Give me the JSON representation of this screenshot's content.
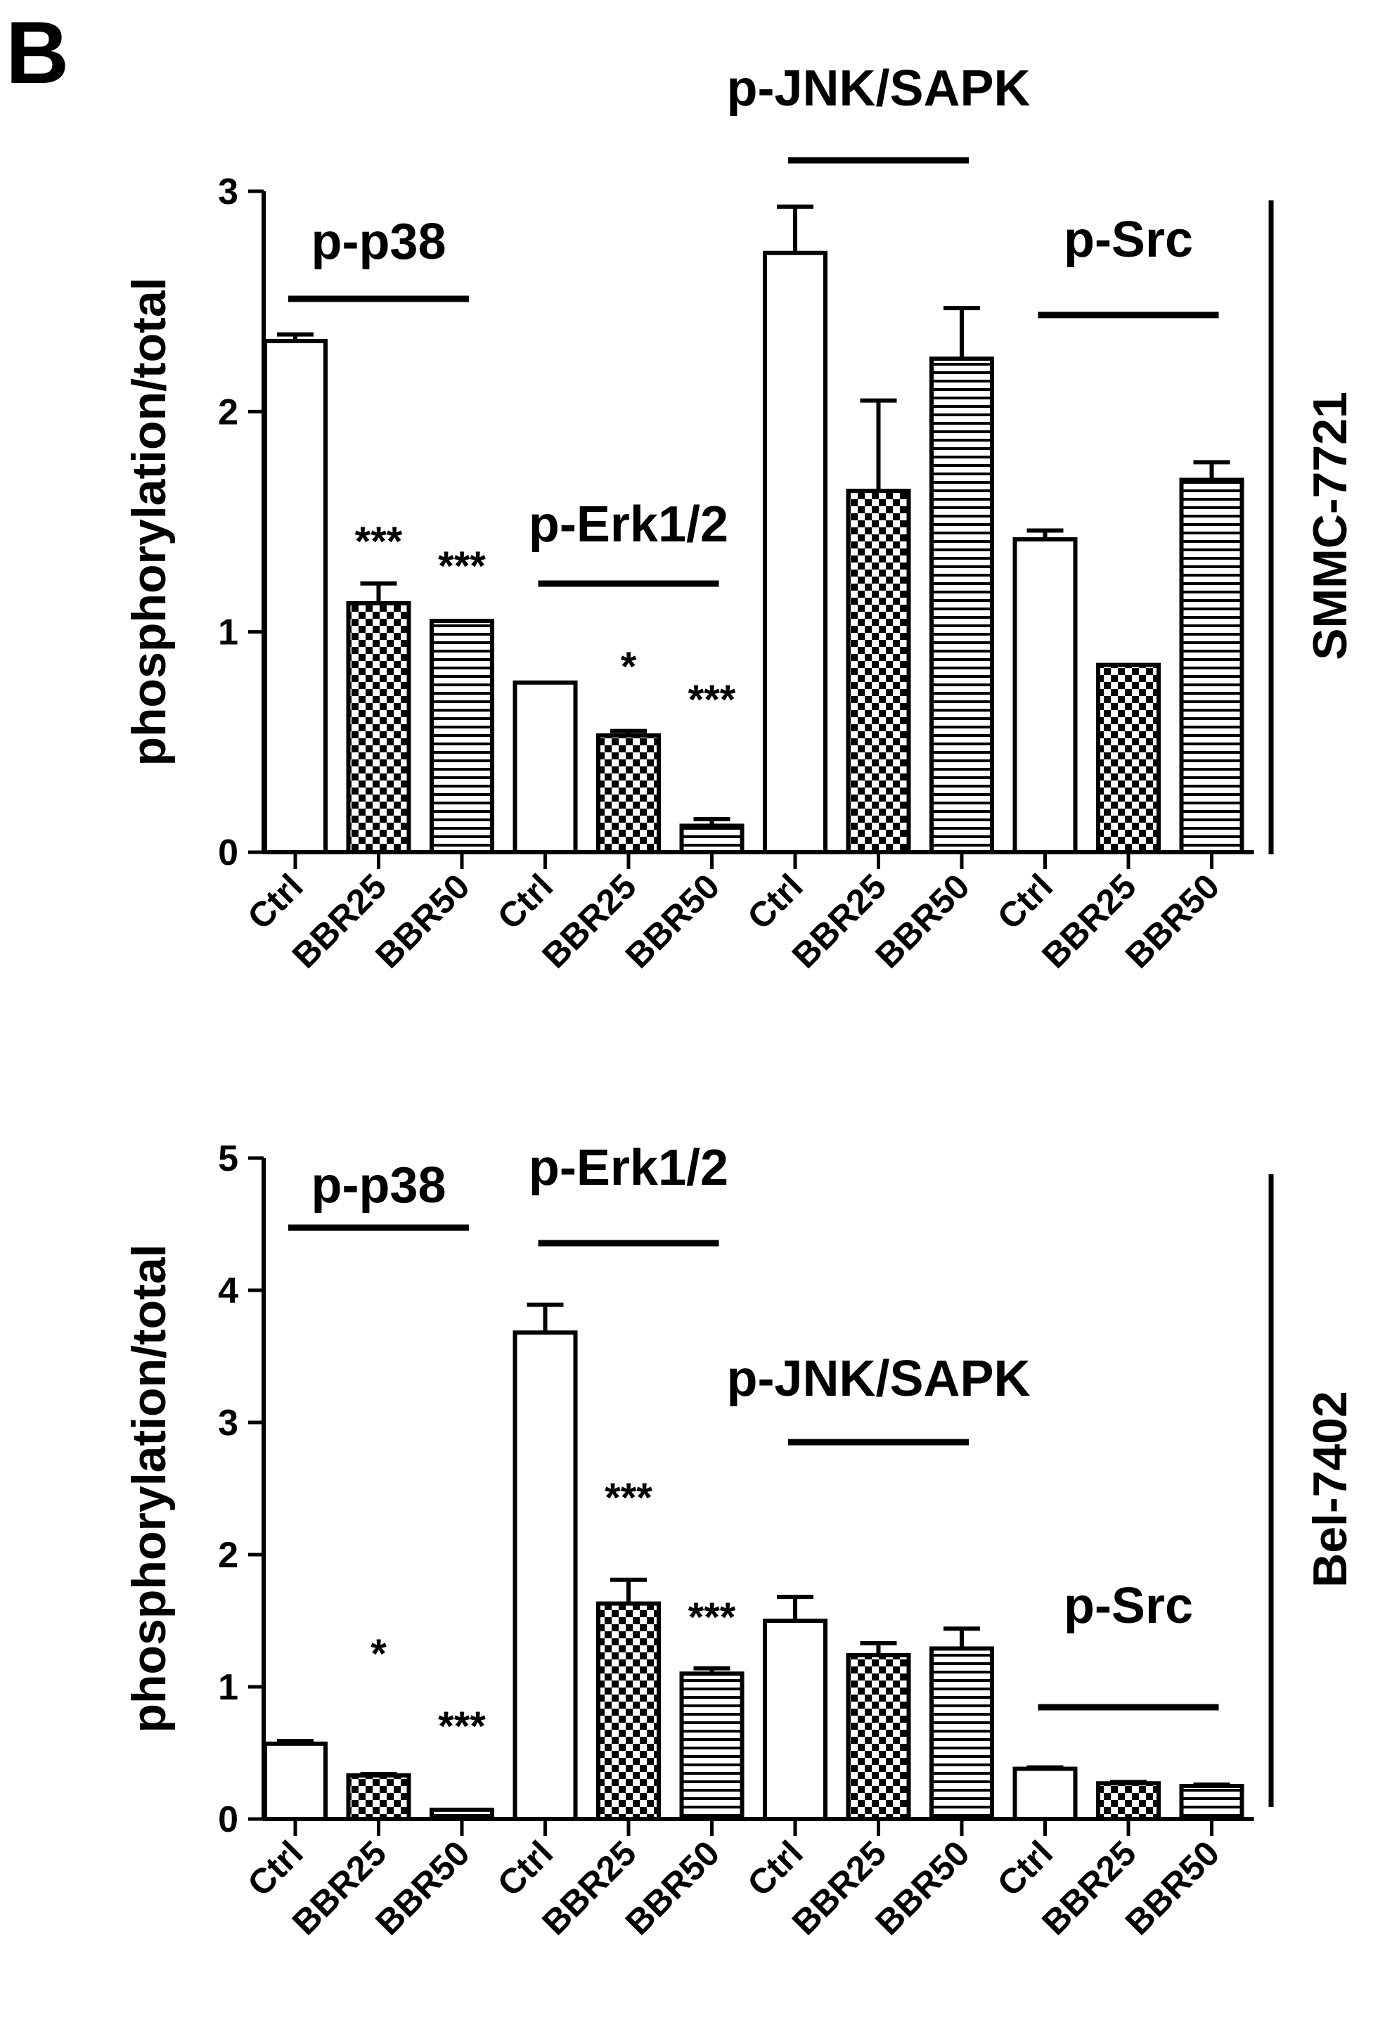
{
  "panel_label": "B",
  "chart_data": [
    {
      "type": "bar",
      "ylabel": "phosphorylation/total",
      "side_label": "SMMC-7721",
      "ylim": [
        0,
        3
      ],
      "yticks": [
        0,
        1,
        2,
        3
      ],
      "categories": [
        "Ctrl",
        "BBR25",
        "BBR50",
        "Ctrl",
        "BBR25",
        "BBR50",
        "Ctrl",
        "BBR25",
        "BBR50",
        "Ctrl",
        "BBR25",
        "BBR50"
      ],
      "patterns": [
        "open",
        "checker",
        "stripes",
        "open",
        "checker",
        "stripes",
        "open",
        "checker",
        "stripes",
        "open",
        "checker",
        "stripes"
      ],
      "values": [
        2.32,
        1.13,
        1.05,
        0.77,
        0.53,
        0.12,
        2.72,
        1.64,
        2.24,
        1.42,
        0.85,
        1.69
      ],
      "errors": [
        0.03,
        0.09,
        0.0,
        0.0,
        0.02,
        0.03,
        0.21,
        0.41,
        0.23,
        0.04,
        0.0,
        0.08
      ],
      "significance": [
        "",
        "***",
        "***",
        "",
        "*",
        "***",
        "",
        "",
        "",
        "",
        "",
        ""
      ],
      "groups": [
        {
          "name": "p-p38",
          "bars": [
            0,
            2
          ]
        },
        {
          "name": "p-Erk1/2",
          "bars": [
            3,
            5
          ]
        },
        {
          "name": "p-JNK/SAPK",
          "bars": [
            6,
            8
          ]
        },
        {
          "name": "p-Src",
          "bars": [
            9,
            11
          ]
        }
      ]
    },
    {
      "type": "bar",
      "ylabel": "phosphorylation/total",
      "side_label": "Bel-7402",
      "ylim": [
        0,
        5
      ],
      "yticks": [
        0,
        1,
        2,
        3,
        4,
        5
      ],
      "categories": [
        "Ctrl",
        "BBR25",
        "BBR50",
        "Ctrl",
        "BBR25",
        "BBR50",
        "Ctrl",
        "BBR25",
        "BBR50",
        "Ctrl",
        "BBR25",
        "BBR50"
      ],
      "patterns": [
        "open",
        "checker",
        "stripes",
        "open",
        "checker",
        "stripes",
        "open",
        "checker",
        "stripes",
        "open",
        "checker",
        "stripes"
      ],
      "values": [
        0.57,
        0.33,
        0.07,
        3.68,
        1.63,
        1.1,
        1.5,
        1.24,
        1.29,
        0.38,
        0.27,
        0.25
      ],
      "errors": [
        0.02,
        0.01,
        0.0,
        0.21,
        0.18,
        0.04,
        0.18,
        0.09,
        0.15,
        0.01,
        0.01,
        0.01
      ],
      "significance": [
        "",
        "*",
        "***",
        "",
        "***",
        "***",
        "",
        "",
        "",
        "",
        "",
        ""
      ],
      "groups": [
        {
          "name": "p-p38",
          "bars": [
            0,
            2
          ]
        },
        {
          "name": "p-Erk1/2",
          "bars": [
            3,
            5
          ]
        },
        {
          "name": "p-JNK/SAPK",
          "bars": [
            6,
            8
          ]
        },
        {
          "name": "p-Src",
          "bars": [
            9,
            11
          ]
        }
      ]
    }
  ]
}
